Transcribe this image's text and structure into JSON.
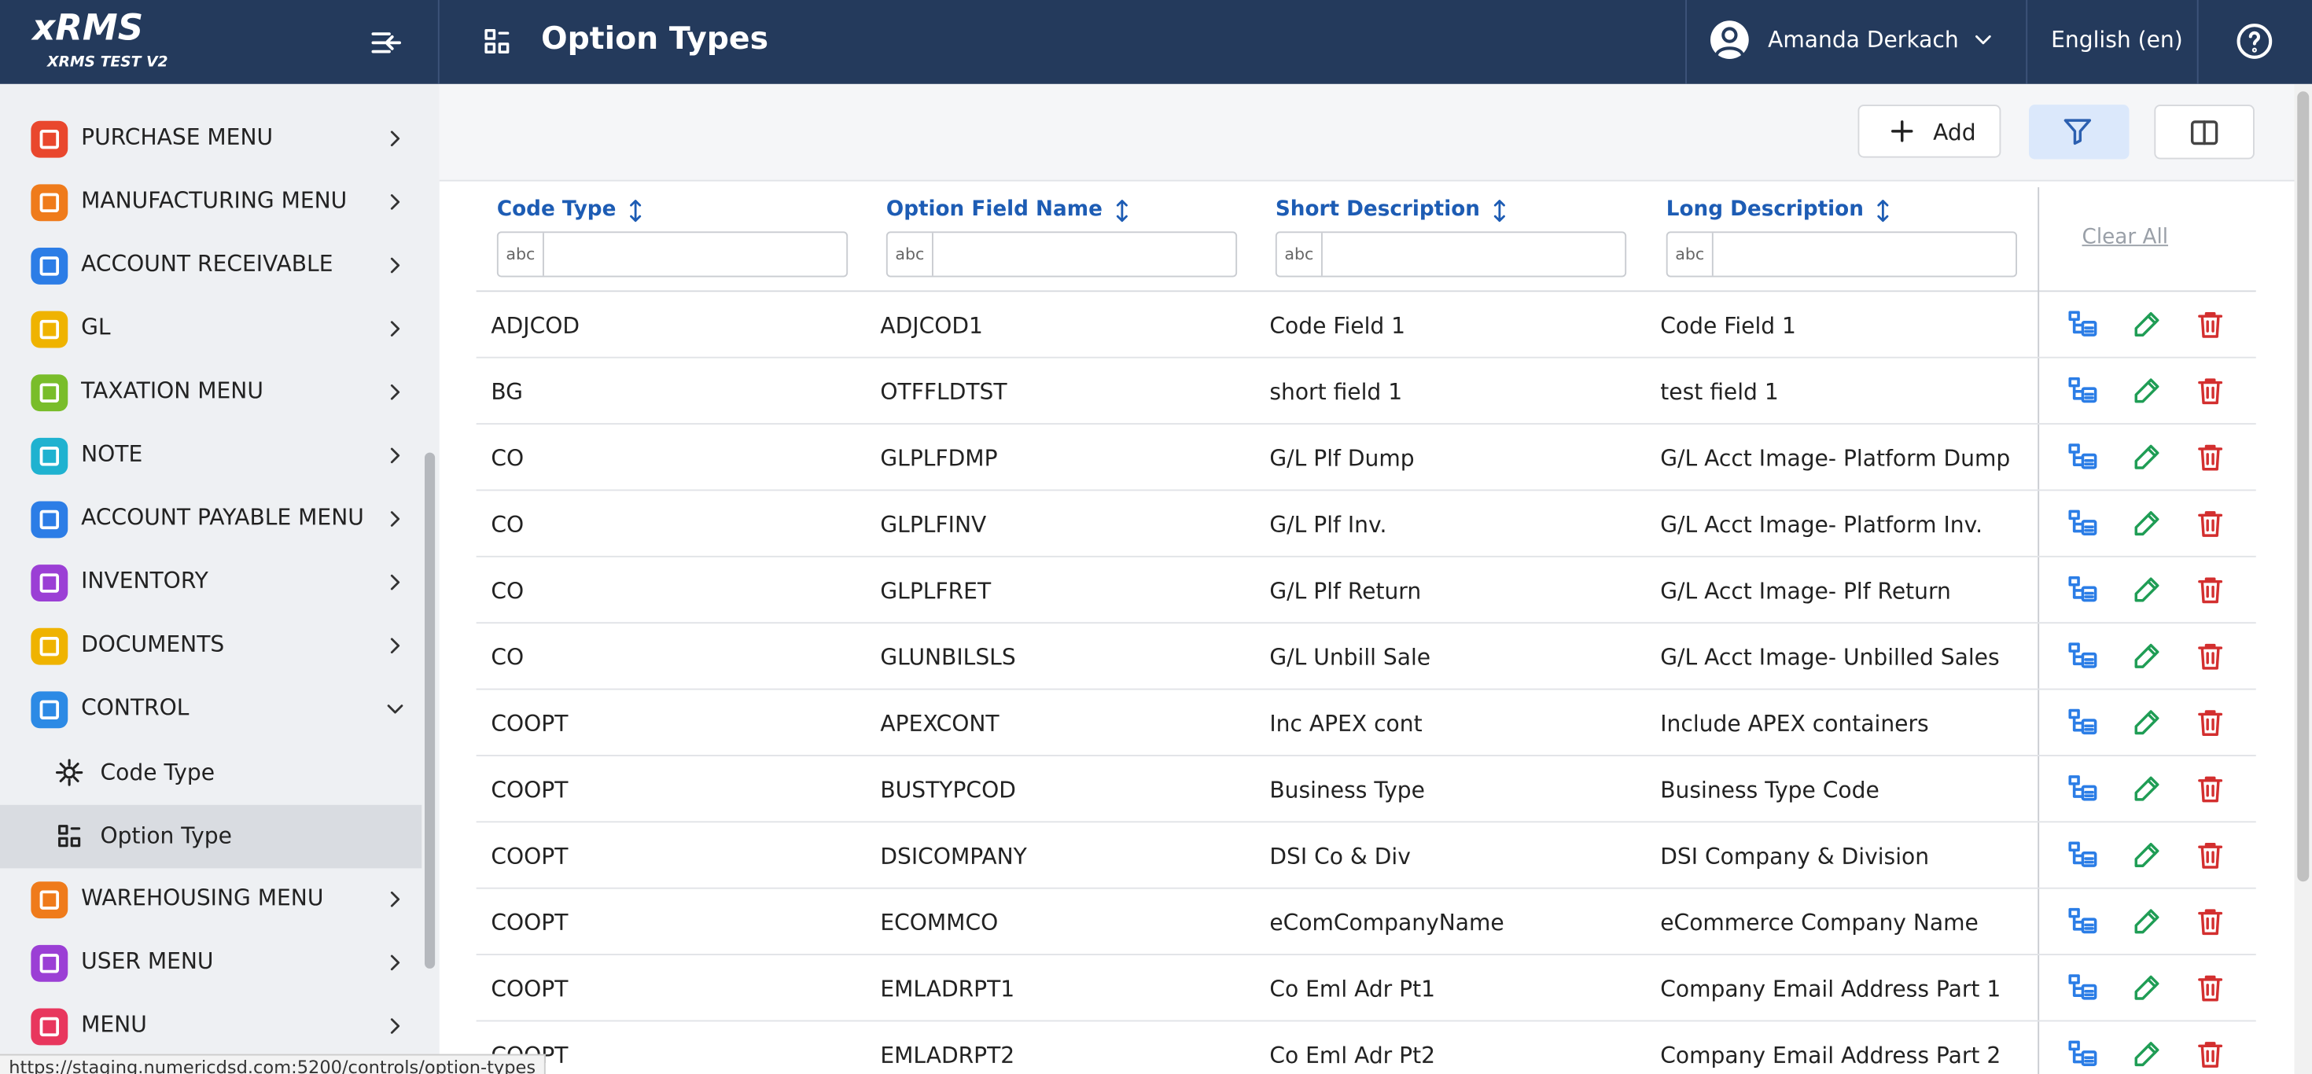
{
  "header": {
    "app_name": "xRMS",
    "app_env": "XRMS TEST V2",
    "page_title": "Option Types",
    "user_name": "Amanda Derkach",
    "language": "English (en)"
  },
  "sidebar": {
    "items": [
      {
        "label": "PURCHASE MENU"
      },
      {
        "label": "MANUFACTURING MENU"
      },
      {
        "label": "ACCOUNT RECEIVABLE"
      },
      {
        "label": "GL"
      },
      {
        "label": "TAXATION MENU"
      },
      {
        "label": "NOTE"
      },
      {
        "label": "ACCOUNT PAYABLE MENU"
      },
      {
        "label": "INVENTORY"
      },
      {
        "label": "DOCUMENTS"
      },
      {
        "label": "CONTROL",
        "children": [
          {
            "label": "Code Type"
          },
          {
            "label": "Option Type"
          }
        ]
      },
      {
        "label": "WAREHOUSING MENU"
      },
      {
        "label": "USER MENU"
      },
      {
        "label": "MENU"
      }
    ]
  },
  "toolbar": {
    "add": "Add"
  },
  "table": {
    "columns": [
      "Code Type",
      "Option Field Name",
      "Short Description",
      "Long Description"
    ],
    "filter_icon": "abc",
    "clear_all": "Clear All",
    "rows": [
      [
        "ADJCOD",
        "ADJCOD1",
        "Code Field 1",
        "Code Field 1"
      ],
      [
        "BG",
        "OTFFLDTST",
        "short field 1",
        "test field 1"
      ],
      [
        "CO",
        "GLPLFDMP",
        "G/L Plf Dump",
        "G/L Acct Image- Platform Dump"
      ],
      [
        "CO",
        "GLPLFINV",
        "G/L Plf Inv.",
        "G/L Acct Image- Platform Inv."
      ],
      [
        "CO",
        "GLPLFRET",
        "G/L Plf Return",
        "G/L Acct Image- Plf Return"
      ],
      [
        "CO",
        "GLUNBILSLS",
        "G/L Unbill Sale",
        "G/L Acct Image- Unbilled Sales"
      ],
      [
        "COOPT",
        "APEXCONT",
        "Inc APEX cont",
        "Include APEX containers"
      ],
      [
        "COOPT",
        "BUSTYPCOD",
        "Business Type",
        "Business Type Code"
      ],
      [
        "COOPT",
        "DSICOMPANY",
        "DSI Co & Div",
        "DSI Company & Division"
      ],
      [
        "COOPT",
        "ECOMMCO",
        "eComCompanyName",
        "eCommerce Company Name"
      ],
      [
        "COOPT",
        "EMLADRPT1",
        "Co Eml Adr Pt1",
        "Company Email Address Part 1"
      ],
      [
        "COOPT",
        "EMLADRPT2",
        "Co Eml Adr Pt2",
        "Company Email Address Part 2"
      ]
    ]
  },
  "status_url": "https://staging.numericdsd.com:5200/controls/option-types"
}
